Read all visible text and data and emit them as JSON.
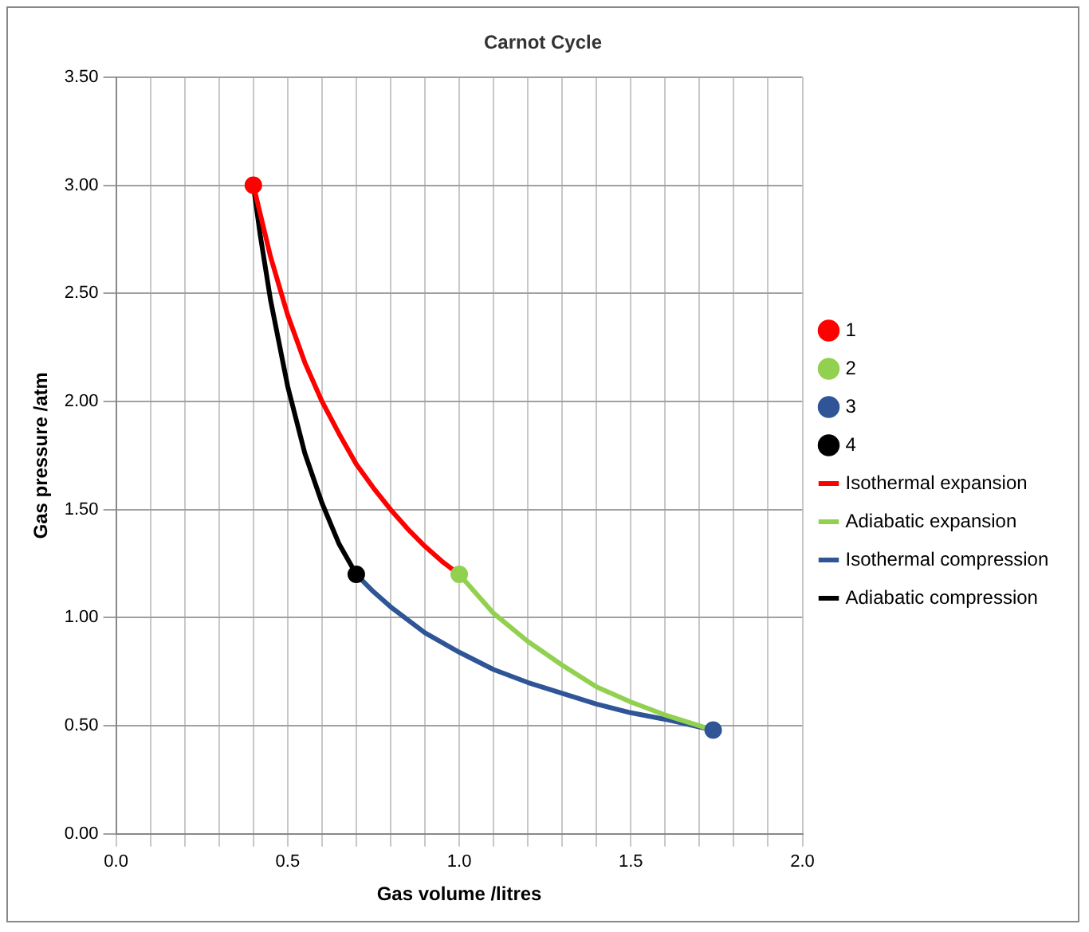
{
  "chart_data": {
    "type": "scatter",
    "title": "Carnot Cycle",
    "xlabel": "Gas volume /litres",
    "ylabel": "Gas pressure /atm",
    "xlim": [
      0,
      2
    ],
    "xticks": [
      {
        "value": 0,
        "label": "0.0"
      },
      {
        "value": 0.1,
        "label": null
      },
      {
        "value": 0.2,
        "label": null
      },
      {
        "value": 0.3,
        "label": null
      },
      {
        "value": 0.4,
        "label": null
      },
      {
        "value": 0.5,
        "label": "0.5"
      },
      {
        "value": 0.6,
        "label": null
      },
      {
        "value": 0.7,
        "label": null
      },
      {
        "value": 0.8,
        "label": null
      },
      {
        "value": 0.9,
        "label": null
      },
      {
        "value": 1,
        "label": "1.0"
      },
      {
        "value": 1.1,
        "label": null
      },
      {
        "value": 1.2,
        "label": null
      },
      {
        "value": 1.3,
        "label": null
      },
      {
        "value": 1.4,
        "label": null
      },
      {
        "value": 1.5,
        "label": "1.5"
      },
      {
        "value": 1.6,
        "label": null
      },
      {
        "value": 1.7,
        "label": null
      },
      {
        "value": 1.8,
        "label": null
      },
      {
        "value": 1.9,
        "label": null
      },
      {
        "value": 2,
        "label": "2.0"
      }
    ],
    "ylim": [
      0,
      3.5
    ],
    "yticks": [
      {
        "value": 0,
        "label": "0.00"
      },
      {
        "value": 0.5,
        "label": "0.50"
      },
      {
        "value": 1,
        "label": "1.00"
      },
      {
        "value": 1.5,
        "label": "1.50"
      },
      {
        "value": 2,
        "label": "2.00"
      },
      {
        "value": 2.5,
        "label": "2.50"
      },
      {
        "value": 3,
        "label": "3.00"
      },
      {
        "value": 3.5,
        "label": "3.50"
      }
    ],
    "grid": true,
    "legend": "right",
    "series": [
      {
        "name": "1",
        "type": "scatter",
        "marker": "circle",
        "color": "#ff0000",
        "x": [
          0.4
        ],
        "values": [
          3.0
        ]
      },
      {
        "name": "2",
        "type": "scatter",
        "marker": "circle",
        "color": "#92d050",
        "x": [
          1.0
        ],
        "values": [
          1.2
        ]
      },
      {
        "name": "3",
        "type": "scatter",
        "marker": "circle",
        "color": "#2f5597",
        "x": [
          1.74
        ],
        "values": [
          0.48
        ]
      },
      {
        "name": "4",
        "type": "scatter",
        "marker": "circle",
        "color": "#000000",
        "x": [
          0.7
        ],
        "values": [
          1.2
        ]
      },
      {
        "name": "Isothermal expansion",
        "type": "line",
        "marker": "none",
        "color": "#ff0000",
        "x": [
          0.4,
          0.45,
          0.5,
          0.55,
          0.6,
          0.65,
          0.7,
          0.75,
          0.8,
          0.85,
          0.9,
          0.95,
          1.0
        ],
        "values": [
          3.0,
          2.67,
          2.4,
          2.18,
          2.0,
          1.85,
          1.71,
          1.6,
          1.5,
          1.41,
          1.33,
          1.26,
          1.2
        ]
      },
      {
        "name": "Adiabatic expansion",
        "type": "line",
        "marker": "none",
        "color": "#92d050",
        "x": [
          1.0,
          1.1,
          1.2,
          1.3,
          1.4,
          1.5,
          1.6,
          1.7,
          1.74
        ],
        "values": [
          1.2,
          1.02,
          0.89,
          0.78,
          0.68,
          0.61,
          0.55,
          0.5,
          0.48
        ]
      },
      {
        "name": "Isothermal compression",
        "type": "line",
        "marker": "none",
        "color": "#2f5597",
        "x": [
          1.74,
          1.6,
          1.5,
          1.4,
          1.3,
          1.2,
          1.1,
          1.0,
          0.9,
          0.8,
          0.75,
          0.7
        ],
        "values": [
          0.48,
          0.53,
          0.56,
          0.6,
          0.65,
          0.7,
          0.76,
          0.84,
          0.93,
          1.05,
          1.12,
          1.2
        ]
      },
      {
        "name": "Adiabatic compression",
        "type": "line",
        "marker": "none",
        "color": "#000000",
        "x": [
          0.7,
          0.65,
          0.6,
          0.55,
          0.5,
          0.45,
          0.42,
          0.4
        ],
        "values": [
          1.2,
          1.34,
          1.53,
          1.76,
          2.07,
          2.47,
          2.77,
          3.0
        ]
      }
    ]
  }
}
